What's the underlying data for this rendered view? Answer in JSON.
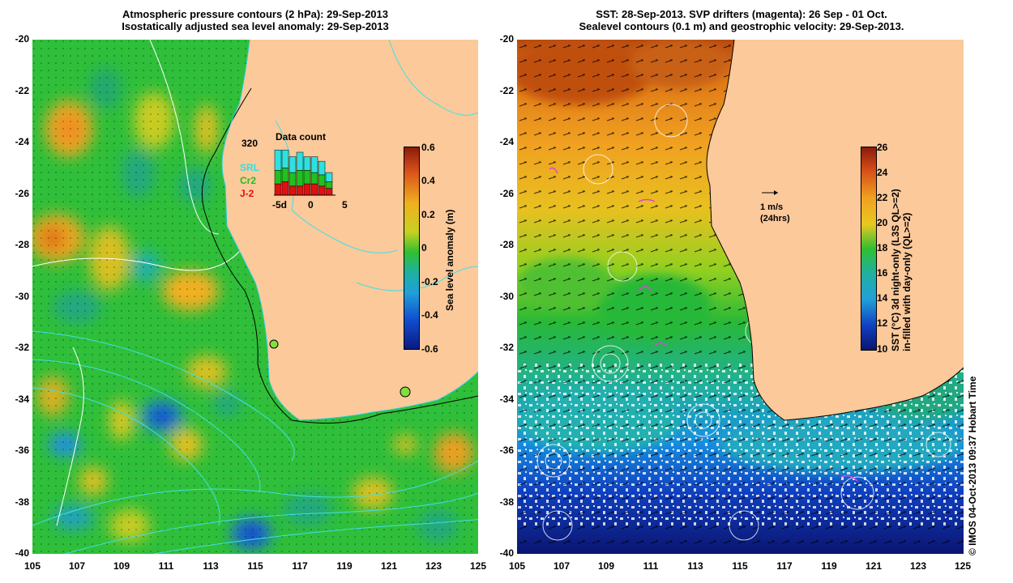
{
  "left_panel": {
    "title_line1": "Atmospheric pressure contours (2 hPa): 29-Sep-2013",
    "title_line2": "Isostatically adjusted sea level anomaly: 29-Sep-2013",
    "colorbar_label": "Sea level anomaly (m)",
    "colorbar_ticks": [
      "0.6",
      "0.4",
      "0.2",
      "0",
      "-0.2",
      "-0.4",
      "-0.6"
    ],
    "inset": {
      "title": "Data count",
      "max_label": "320",
      "series": [
        "SRL",
        "Cr2",
        "J-2"
      ],
      "series_colors": [
        "#30e0e0",
        "#20c020",
        "#e01010"
      ],
      "x_ticks": [
        "-5d",
        "0",
        "5"
      ]
    }
  },
  "right_panel": {
    "title_line1": "SST: 28-Sep-2013. SVP drifters (magenta): 26 Sep - 01 Oct.",
    "title_line2": "Sealevel contours (0.1 m) and geostrophic velocity: 29-Sep-2013.",
    "colorbar_label_line1": "SST (°C) 3d night-only (L3S QL>=2)",
    "colorbar_label_line2": "in-filled with day-only (QL>=2)",
    "colorbar_ticks": [
      "26",
      "24",
      "22",
      "20",
      "18",
      "16",
      "14",
      "12",
      "10"
    ],
    "velocity_scale_line1": "1 m/s",
    "velocity_scale_line2": "(24hrs)"
  },
  "axes": {
    "y_ticks": [
      "-20",
      "-22",
      "-24",
      "-26",
      "-28",
      "-30",
      "-32",
      "-34",
      "-36",
      "-38",
      "-40"
    ],
    "x_ticks": [
      "105",
      "107",
      "109",
      "111",
      "113",
      "115",
      "117",
      "119",
      "121",
      "123",
      "125"
    ]
  },
  "credit": "© IMOS 04-Oct-2013 09:37 Hobart Time",
  "colors": {
    "land": "#fbc99a",
    "ocean_green": "#2fbf3a",
    "coast_line": "#000000",
    "contour_cyan": "#40e0e8"
  }
}
